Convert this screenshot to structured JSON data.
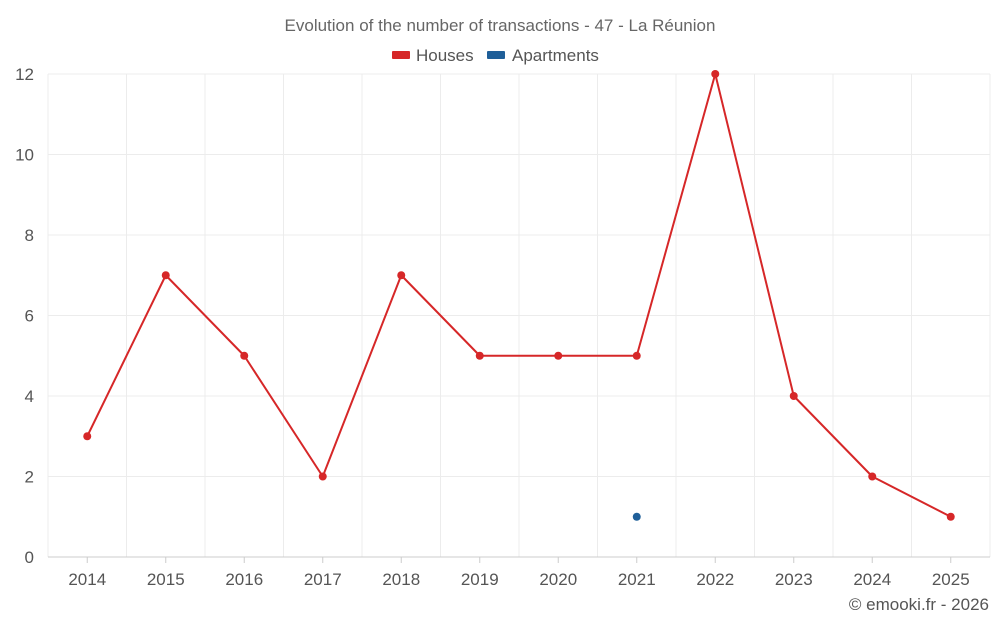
{
  "chart_data": {
    "type": "line",
    "title": "Evolution of the number of transactions - 47 - La Réunion",
    "categories": [
      "2014",
      "2015",
      "2016",
      "2017",
      "2018",
      "2019",
      "2020",
      "2021",
      "2022",
      "2023",
      "2024",
      "2025"
    ],
    "series": [
      {
        "name": "Houses",
        "color": "#d62728",
        "values": [
          3,
          7,
          5,
          2,
          7,
          5,
          5,
          5,
          12,
          4,
          2,
          1
        ]
      },
      {
        "name": "Apartments",
        "color": "#1f5f99",
        "values": [
          null,
          null,
          null,
          null,
          null,
          null,
          null,
          1,
          null,
          null,
          null,
          null
        ]
      }
    ],
    "y_ticks": [
      0,
      2,
      4,
      6,
      8,
      10,
      12
    ],
    "ylim": [
      0,
      12
    ],
    "grid": true,
    "legend_position": "top-center",
    "xlabel": "",
    "ylabel": ""
  },
  "credit": "© emooki.fr - 2026"
}
